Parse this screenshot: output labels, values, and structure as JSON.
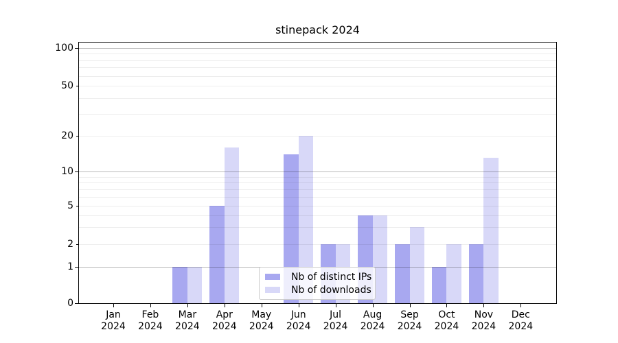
{
  "title": "stinepack 2024",
  "colors": {
    "ips_bar": "#a8a8f0",
    "downloads_bar": "#d8d8f8",
    "axis": "#000000",
    "grid_major": "rgba(0,0,0,0.28)",
    "grid_minor": "rgba(0,0,0,0.07)",
    "legend_border": "#cccccc",
    "background": "#ffffff"
  },
  "legend": {
    "items": [
      {
        "label": "Nb of distinct IPs",
        "color_key": "ips_bar"
      },
      {
        "label": "Nb of downloads",
        "color_key": "downloads_bar"
      }
    ]
  },
  "y_axis": {
    "ticks": [
      {
        "value": 0,
        "label": "0",
        "major": true
      },
      {
        "value": 1,
        "label": "1",
        "major": true
      },
      {
        "value": 2,
        "label": "2",
        "major": false
      },
      {
        "value": 5,
        "label": "5",
        "major": false
      },
      {
        "value": 10,
        "label": "10",
        "major": true
      },
      {
        "value": 20,
        "label": "20",
        "major": false
      },
      {
        "value": 50,
        "label": "50",
        "major": false
      },
      {
        "value": 100,
        "label": "100",
        "major": true
      }
    ],
    "major_gridlines": [
      1,
      10,
      100
    ],
    "minor_gridlines": [
      2,
      3,
      4,
      5,
      6,
      7,
      8,
      9,
      20,
      30,
      40,
      50,
      60,
      70,
      80,
      90
    ]
  },
  "x_axis": {
    "months": [
      "Jan",
      "Feb",
      "Mar",
      "Apr",
      "May",
      "Jun",
      "Jul",
      "Aug",
      "Sep",
      "Oct",
      "Nov",
      "Dec"
    ],
    "year": "2024"
  },
  "chart_data": {
    "type": "bar",
    "title": "stinepack 2024",
    "categories": [
      "Jan 2024",
      "Feb 2024",
      "Mar 2024",
      "Apr 2024",
      "May 2024",
      "Jun 2024",
      "Jul 2024",
      "Aug 2024",
      "Sep 2024",
      "Oct 2024",
      "Nov 2024",
      "Dec 2024"
    ],
    "series": [
      {
        "name": "Nb of distinct IPs",
        "values": [
          0,
          0,
          1,
          5,
          0,
          14,
          2,
          4,
          2,
          1,
          2,
          0
        ]
      },
      {
        "name": "Nb of downloads",
        "values": [
          0,
          0,
          1,
          16,
          0,
          20,
          2,
          4,
          3,
          2,
          13,
          0
        ]
      }
    ],
    "yscale": "symlog-like",
    "ylim": [
      0,
      100
    ],
    "y_tick_values": [
      0,
      1,
      2,
      5,
      10,
      20,
      50,
      100
    ],
    "grid": true,
    "legend_position": "lower center-right inside plot"
  }
}
